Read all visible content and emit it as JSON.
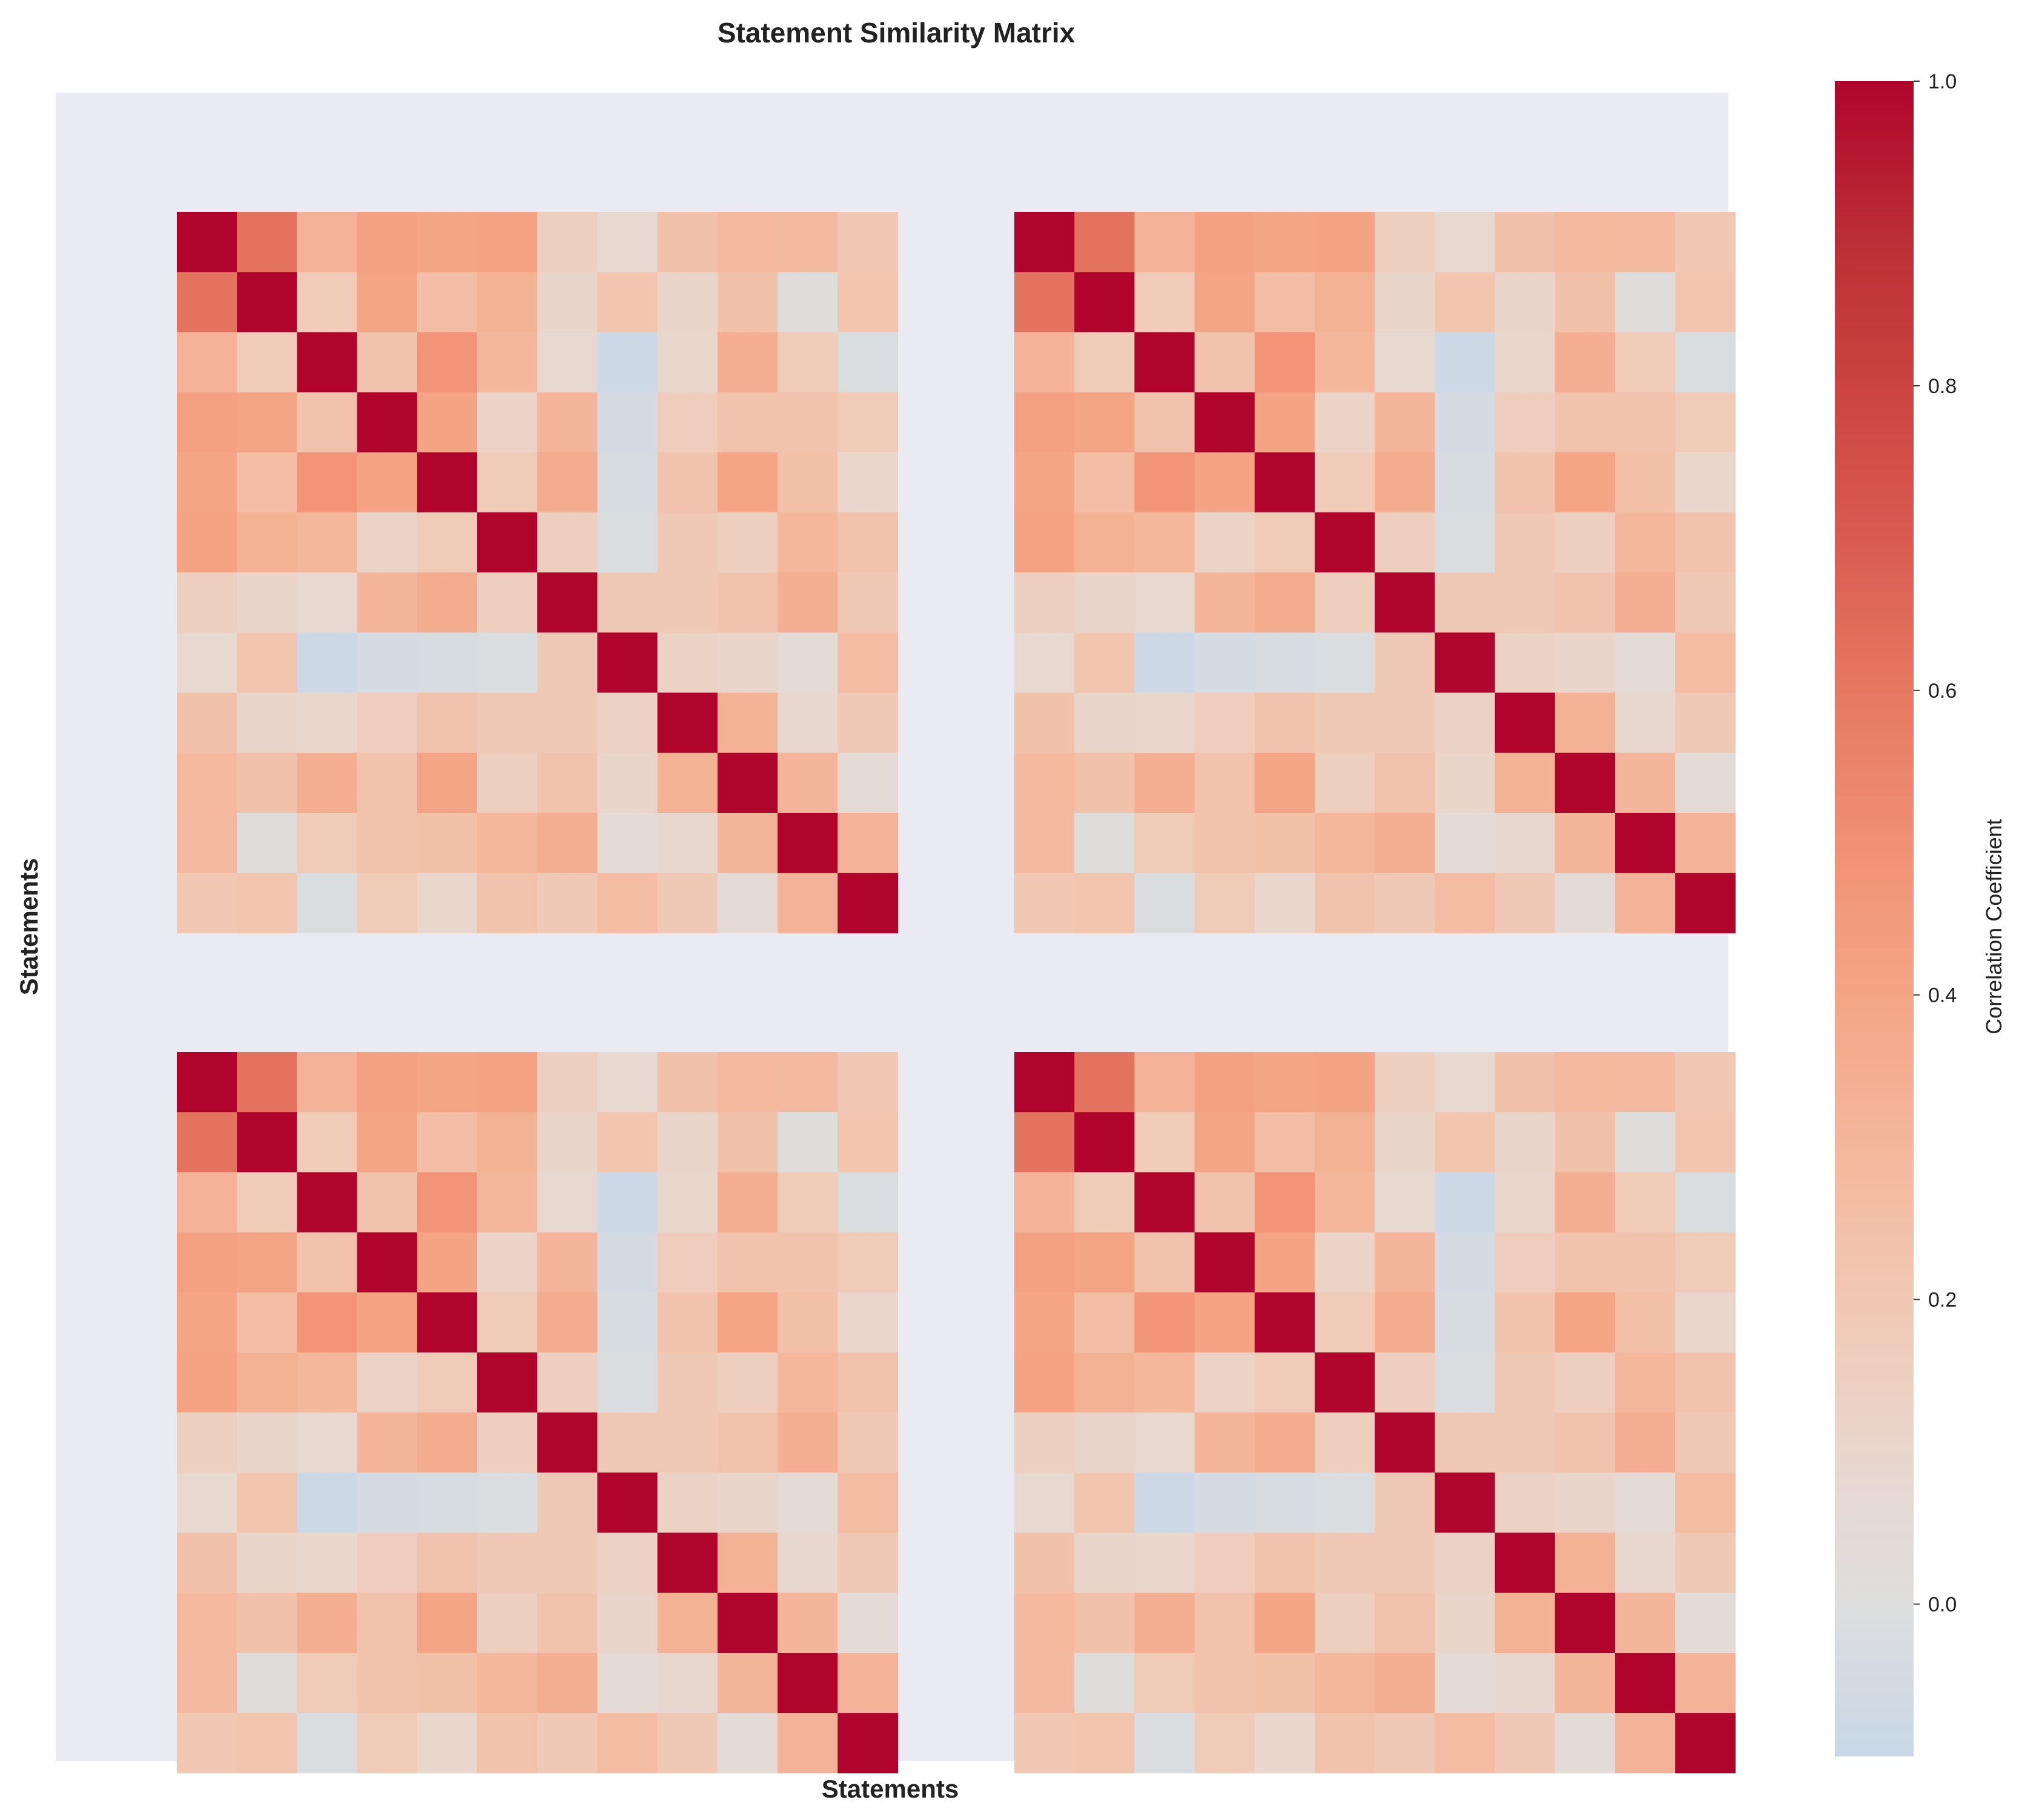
{
  "chart_data": {
    "type": "heatmap",
    "title": "Statement Similarity Matrix",
    "xlabel": "Statements",
    "ylabel": "Statements",
    "colorbar": {
      "label": "Correlation Coefficient",
      "ticks": [
        "1.0",
        "0.8",
        "0.6",
        "0.4",
        "0.2",
        "0.0"
      ],
      "tick_values": [
        1.0,
        0.8,
        0.6,
        0.4,
        0.2,
        0.0
      ],
      "range": [
        -0.1,
        1.0
      ],
      "colormap": "coolwarm-like",
      "stops": [
        {
          "v": -0.1,
          "color": "#c8d7e7"
        },
        {
          "v": 0.0,
          "color": "#dedede"
        },
        {
          "v": 0.1,
          "color": "#e9d6cd"
        },
        {
          "v": 0.2,
          "color": "#f1c8b3"
        },
        {
          "v": 0.3,
          "color": "#f4b79c"
        },
        {
          "v": 0.4,
          "color": "#f4a586"
        },
        {
          "v": 0.5,
          "color": "#f09074"
        },
        {
          "v": 0.6,
          "color": "#e67862"
        },
        {
          "v": 0.7,
          "color": "#d95b50"
        },
        {
          "v": 0.8,
          "color": "#cb4440"
        },
        {
          "v": 0.9,
          "color": "#bb2d35"
        },
        {
          "v": 1.0,
          "color": "#b0042c"
        }
      ]
    },
    "panel_background": "#eaeaf2",
    "grid": false,
    "panels": 4,
    "panel_layout": "2x2",
    "matrix": [
      [
        1.0,
        0.62,
        0.32,
        0.42,
        0.4,
        0.41,
        0.15,
        0.08,
        0.24,
        0.29,
        0.28,
        0.2
      ],
      [
        0.62,
        1.0,
        0.18,
        0.4,
        0.26,
        0.33,
        0.11,
        0.22,
        0.11,
        0.24,
        0.01,
        0.22
      ],
      [
        0.32,
        0.18,
        1.0,
        0.23,
        0.48,
        0.3,
        0.08,
        -0.08,
        0.1,
        0.35,
        0.18,
        -0.02
      ],
      [
        0.42,
        0.4,
        0.23,
        1.0,
        0.41,
        0.12,
        0.31,
        -0.04,
        0.17,
        0.23,
        0.23,
        0.18
      ],
      [
        0.4,
        0.26,
        0.48,
        0.41,
        1.0,
        0.18,
        0.36,
        -0.03,
        0.23,
        0.4,
        0.25,
        0.1
      ],
      [
        0.41,
        0.33,
        0.3,
        0.12,
        0.18,
        1.0,
        0.16,
        -0.02,
        0.19,
        0.15,
        0.3,
        0.23
      ],
      [
        0.15,
        0.11,
        0.08,
        0.31,
        0.36,
        0.16,
        1.0,
        0.19,
        0.19,
        0.23,
        0.35,
        0.19
      ],
      [
        0.08,
        0.22,
        -0.08,
        -0.04,
        -0.03,
        -0.02,
        0.19,
        1.0,
        0.13,
        0.11,
        0.05,
        0.27
      ],
      [
        0.24,
        0.11,
        0.1,
        0.17,
        0.23,
        0.19,
        0.19,
        0.13,
        1.0,
        0.33,
        0.09,
        0.19
      ],
      [
        0.29,
        0.24,
        0.35,
        0.23,
        0.4,
        0.15,
        0.23,
        0.11,
        0.33,
        1.0,
        0.31,
        0.05
      ],
      [
        0.28,
        0.01,
        0.18,
        0.23,
        0.25,
        0.3,
        0.35,
        0.05,
        0.09,
        0.31,
        1.0,
        0.32
      ],
      [
        0.2,
        0.22,
        -0.02,
        0.18,
        0.1,
        0.23,
        0.19,
        0.27,
        0.19,
        0.05,
        0.32,
        1.0
      ]
    ]
  }
}
